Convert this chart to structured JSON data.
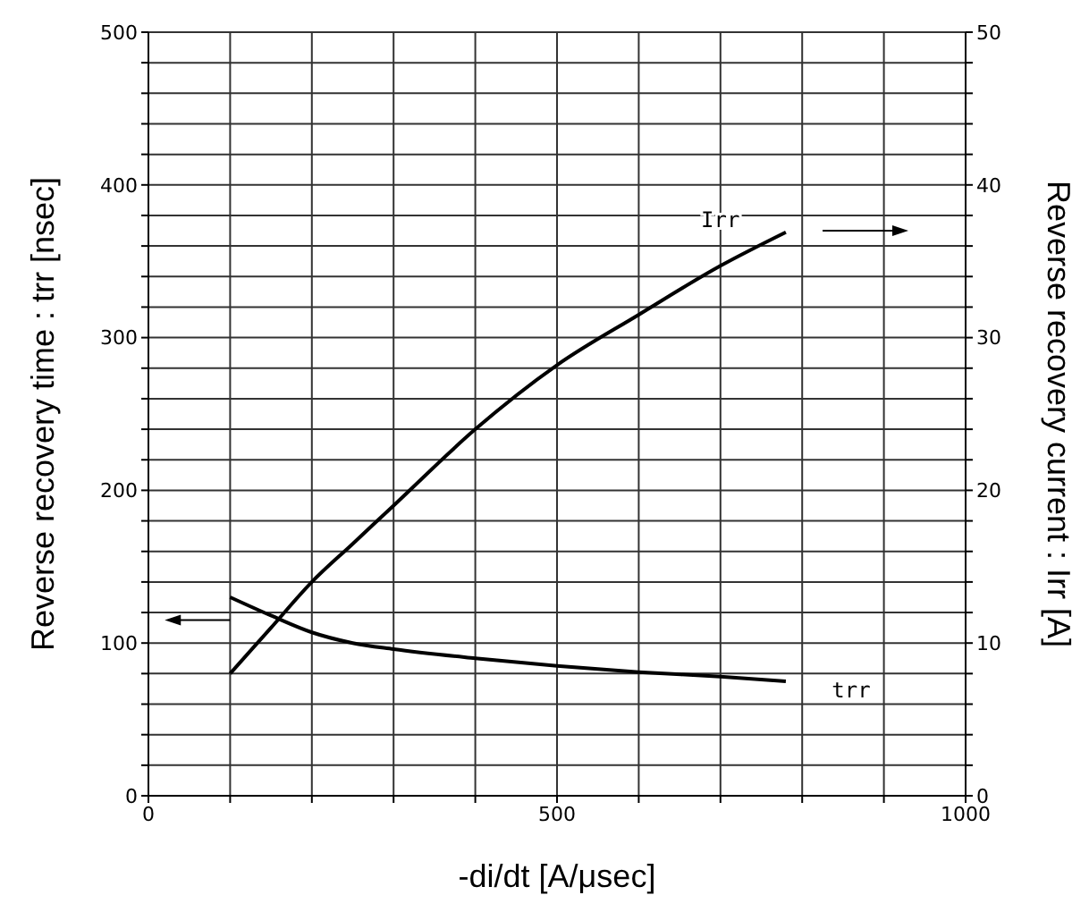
{
  "chart_data": {
    "type": "line",
    "xlabel": "-di/dt [A/μsec]",
    "ylabel": "Reverse recovery time : trr [nsec]",
    "y2label": "Reverse recovery current : Irr [A]",
    "x": [
      100,
      150,
      200,
      250,
      300,
      400,
      500,
      600,
      700,
      780
    ],
    "series": [
      {
        "color": "#000000",
        "values": [
          130,
          118,
          107,
          100,
          96,
          90,
          85,
          81,
          78,
          75
        ]
      },
      {
        "color": "#000000",
        "axis": "y2",
        "values": [
          8,
          11,
          14,
          16.5,
          19,
          24,
          28.2,
          31.5,
          34.7,
          36.9
        ]
      }
    ],
    "xlim": [
      0,
      1000
    ],
    "xticks": [
      0,
      {
        "value": 100,
        "label": null
      },
      {
        "value": 200,
        "label": null
      },
      {
        "value": 300,
        "label": null
      },
      {
        "value": 400,
        "label": null
      },
      500,
      {
        "value": 600,
        "label": null
      },
      {
        "value": 700,
        "label": null
      },
      {
        "value": 800,
        "label": null
      },
      {
        "value": 900,
        "label": null
      },
      1000
    ],
    "ylim": [
      0,
      500
    ],
    "yticks": [
      0,
      {
        "value": 20,
        "label": null
      },
      {
        "value": 40,
        "label": null
      },
      {
        "value": 60,
        "label": null
      },
      {
        "value": 80,
        "label": null
      },
      100,
      {
        "value": 120,
        "label": null
      },
      {
        "value": 140,
        "label": null
      },
      {
        "value": 160,
        "label": null
      },
      {
        "value": 180,
        "label": null
      },
      200,
      {
        "value": 220,
        "label": null
      },
      {
        "value": 240,
        "label": null
      },
      {
        "value": 260,
        "label": null
      },
      {
        "value": 280,
        "label": null
      },
      300,
      {
        "value": 320,
        "label": null
      },
      {
        "value": 340,
        "label": null
      },
      {
        "value": 360,
        "label": null
      },
      {
        "value": 380,
        "label": null
      },
      400,
      {
        "value": 420,
        "label": null
      },
      {
        "value": 440,
        "label": null
      },
      {
        "value": 460,
        "label": null
      },
      {
        "value": 480,
        "label": null
      },
      500
    ],
    "y2lim": [
      0,
      50
    ],
    "y2ticks": [
      0,
      {
        "value": 2,
        "label": null
      },
      {
        "value": 4,
        "label": null
      },
      {
        "value": 6,
        "label": null
      },
      {
        "value": 8,
        "label": null
      },
      10,
      {
        "value": 12,
        "label": null
      },
      {
        "value": 14,
        "label": null
      },
      {
        "value": 16,
        "label": null
      },
      {
        "value": 18,
        "label": null
      },
      20,
      {
        "value": 22,
        "label": null
      },
      {
        "value": 24,
        "label": null
      },
      {
        "value": 26,
        "label": null
      },
      {
        "value": 28,
        "label": null
      },
      30,
      {
        "value": 32,
        "label": null
      },
      {
        "value": 34,
        "label": null
      },
      {
        "value": 36,
        "label": null
      },
      {
        "value": 38,
        "label": null
      },
      40,
      {
        "value": 42,
        "label": null
      },
      {
        "value": 44,
        "label": null
      },
      {
        "value": 46,
        "label": null
      },
      {
        "value": 48,
        "label": null
      },
      50
    ],
    "annotations": [
      "Irr",
      "trr"
    ],
    "grid": true,
    "legend": false,
    "marker": "none",
    "line_style": "solid"
  }
}
